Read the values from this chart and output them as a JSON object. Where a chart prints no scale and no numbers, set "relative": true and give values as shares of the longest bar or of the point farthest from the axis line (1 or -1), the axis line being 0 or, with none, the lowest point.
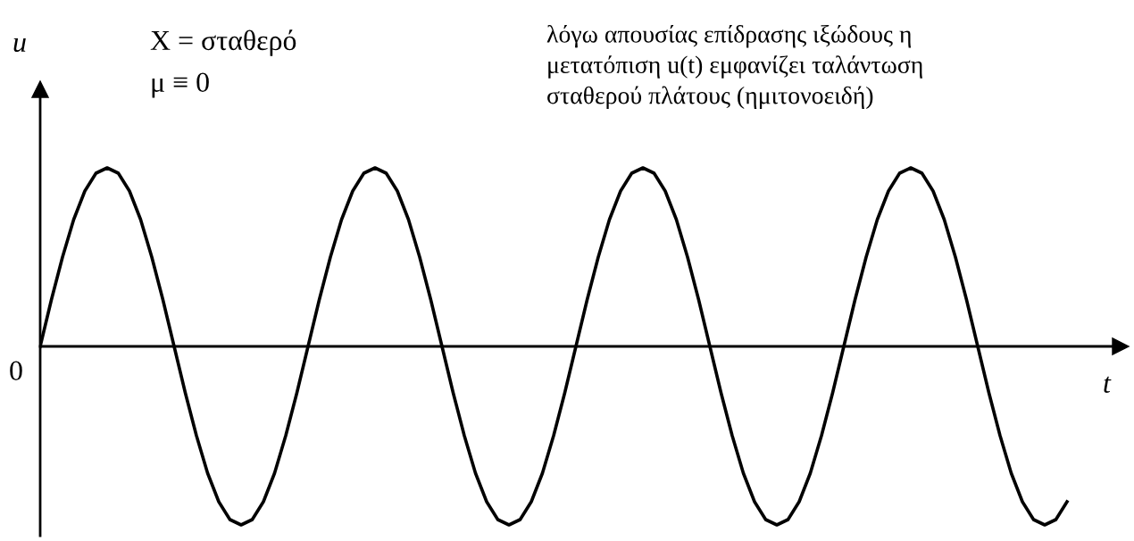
{
  "chart_data": {
    "type": "line",
    "relative": true,
    "xlabel": "t",
    "ylabel": "u",
    "color": "#000000",
    "marker": "none",
    "line_style": "solid",
    "annotations": [
      "X = σταθερό",
      "μ ≡ 0",
      "λόγω απουσίας επίδρασης ιξώδους η\nμετατόπιση u(t) εμφανίζει ταλάντωση\nσταθερού πλάτους (ημιτονοειδή)",
      "0"
    ],
    "categories": [
      null,
      null,
      null,
      null,
      null,
      null,
      null,
      null,
      null,
      null,
      null,
      null,
      null,
      null,
      null,
      null,
      null,
      null,
      null,
      null,
      null,
      null,
      null,
      null,
      null,
      null,
      null,
      null,
      null,
      null,
      null,
      null,
      null,
      null,
      null,
      null,
      null,
      null,
      null,
      null,
      null,
      null,
      null,
      null,
      null,
      null,
      null,
      null,
      null,
      null,
      null,
      null,
      null,
      null,
      null,
      null,
      null,
      null,
      null,
      null,
      null,
      null,
      null,
      null,
      null,
      null,
      null,
      null,
      null,
      null,
      null,
      null,
      null,
      null,
      null,
      null,
      null,
      null,
      null,
      null,
      null,
      null,
      null,
      null,
      null,
      null,
      null,
      null,
      null,
      null,
      null,
      null,
      null
    ],
    "values": [
      0,
      0.26,
      0.5,
      0.71,
      0.87,
      0.97,
      1,
      0.97,
      0.87,
      0.71,
      0.5,
      0.26,
      0,
      -0.26,
      -0.5,
      -0.71,
      -0.87,
      -0.97,
      -1,
      -0.97,
      -0.87,
      -0.71,
      -0.5,
      -0.26,
      0,
      0.26,
      0.5,
      0.71,
      0.87,
      0.97,
      1,
      0.97,
      0.87,
      0.71,
      0.5,
      0.26,
      0,
      -0.26,
      -0.5,
      -0.71,
      -0.87,
      -0.97,
      -1,
      -0.97,
      -0.87,
      -0.71,
      -0.5,
      -0.26,
      0,
      0.26,
      0.5,
      0.71,
      0.87,
      0.97,
      1,
      0.97,
      0.87,
      0.71,
      0.5,
      0.26,
      0,
      -0.26,
      -0.5,
      -0.71,
      -0.87,
      -0.97,
      -1,
      -0.97,
      -0.87,
      -0.71,
      -0.5,
      -0.26,
      0,
      0.26,
      0.5,
      0.71,
      0.87,
      0.97,
      1,
      0.97,
      0.87,
      0.71,
      0.5,
      0.26,
      0,
      -0.26,
      -0.5,
      -0.71,
      -0.87,
      -0.97,
      -1,
      -0.97,
      -0.87
    ],
    "legend": false
  }
}
